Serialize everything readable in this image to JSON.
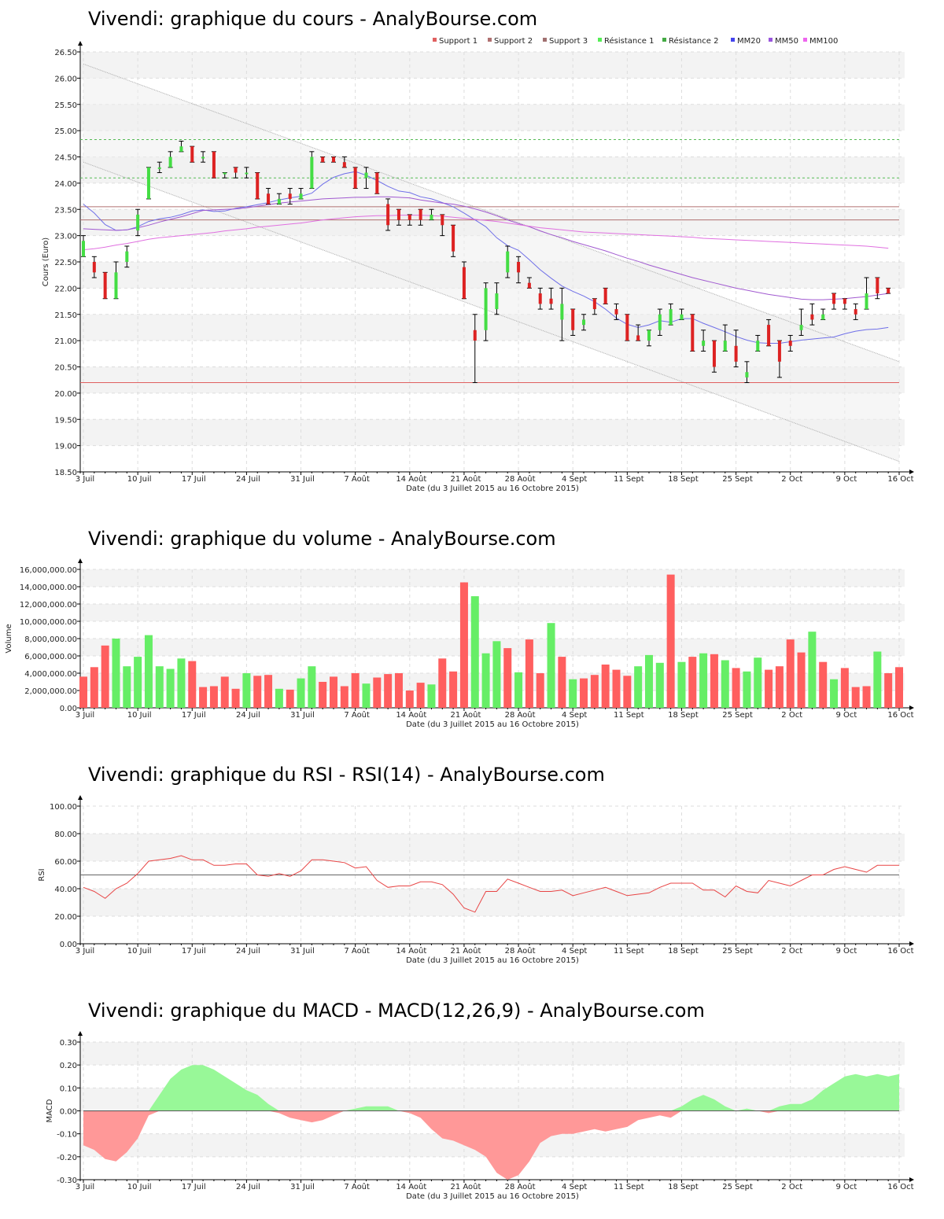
{
  "chart_data": [
    {
      "type": "candlestick",
      "title": "Vivendi: graphique du cours - AnalyBourse.com",
      "xlabel": "Date (du 3 Juillet 2015 au 16 Octobre 2015)",
      "ylabel": "Cours (Euro)",
      "ylim": [
        18.5,
        26.5
      ],
      "yticks": [
        "18.50",
        "19.00",
        "19.50",
        "20.00",
        "20.50",
        "21.00",
        "21.50",
        "22.00",
        "22.50",
        "23.00",
        "23.50",
        "24.00",
        "24.50",
        "25.00",
        "25.50",
        "26.00",
        "26.50"
      ],
      "xticks": [
        "3 Juil",
        "10 Juil",
        "17 Juil",
        "24 Juil",
        "31 Juil",
        "7 Août",
        "14 Août",
        "21 Août",
        "28 Août",
        "4 Sept",
        "11 Sept",
        "18 Sept",
        "25 Sept",
        "2 Oct",
        "9 Oct",
        "16 Oct"
      ],
      "legend": [
        "Support 1",
        "Support 2",
        "Support 3",
        "Résistance 1",
        "Résistance 2",
        "MM20",
        "MM50",
        "MM100"
      ],
      "levels": {
        "support_1": 20.2,
        "support_2": 23.3,
        "support_3": 23.55,
        "resistance_1": 24.1,
        "resistance_2": 24.83
      },
      "ohlc": [
        [
          22.6,
          23.0,
          22.6,
          22.9
        ],
        [
          22.5,
          22.6,
          22.2,
          22.3
        ],
        [
          22.3,
          22.3,
          21.8,
          21.8
        ],
        [
          21.8,
          22.5,
          21.8,
          22.3
        ],
        [
          22.5,
          22.8,
          22.4,
          22.7
        ],
        [
          23.1,
          23.5,
          23.0,
          23.4
        ],
        [
          23.7,
          24.3,
          23.7,
          24.3
        ],
        [
          24.3,
          24.4,
          24.2,
          24.3
        ],
        [
          24.3,
          24.6,
          24.3,
          24.5
        ],
        [
          24.6,
          24.8,
          24.6,
          24.7
        ],
        [
          24.7,
          24.7,
          24.4,
          24.4
        ],
        [
          24.5,
          24.6,
          24.4,
          24.5
        ],
        [
          24.6,
          24.6,
          24.1,
          24.1
        ],
        [
          24.2,
          24.2,
          24.1,
          24.2
        ],
        [
          24.3,
          24.3,
          24.1,
          24.2
        ],
        [
          24.2,
          24.3,
          24.1,
          24.2
        ],
        [
          24.2,
          24.2,
          23.7,
          23.7
        ],
        [
          23.8,
          23.9,
          23.6,
          23.6
        ],
        [
          23.6,
          23.8,
          23.6,
          23.7
        ],
        [
          23.8,
          23.9,
          23.6,
          23.7
        ],
        [
          23.7,
          23.9,
          23.7,
          23.8
        ],
        [
          23.9,
          24.6,
          23.9,
          24.5
        ],
        [
          24.5,
          24.5,
          24.4,
          24.4
        ],
        [
          24.5,
          24.5,
          24.4,
          24.4
        ],
        [
          24.4,
          24.5,
          24.3,
          24.3
        ],
        [
          24.3,
          24.3,
          23.9,
          23.9
        ],
        [
          24.1,
          24.3,
          23.9,
          24.2
        ],
        [
          24.2,
          24.2,
          23.8,
          23.8
        ],
        [
          23.6,
          23.7,
          23.1,
          23.2
        ],
        [
          23.5,
          23.5,
          23.2,
          23.3
        ],
        [
          23.4,
          23.4,
          23.2,
          23.3
        ],
        [
          23.5,
          23.5,
          23.2,
          23.3
        ],
        [
          23.3,
          23.5,
          23.3,
          23.4
        ],
        [
          23.4,
          23.4,
          23.0,
          23.2
        ],
        [
          23.2,
          23.2,
          22.6,
          22.7
        ],
        [
          22.4,
          22.5,
          21.8,
          21.8
        ],
        [
          21.2,
          21.5,
          20.2,
          21.0
        ],
        [
          21.2,
          22.1,
          21.0,
          22.0
        ],
        [
          21.6,
          22.1,
          21.5,
          21.9
        ],
        [
          22.3,
          22.8,
          22.2,
          22.7
        ],
        [
          22.5,
          22.6,
          22.1,
          22.3
        ],
        [
          22.1,
          22.2,
          22.0,
          22.0
        ],
        [
          21.9,
          22.0,
          21.6,
          21.7
        ],
        [
          21.8,
          22.0,
          21.6,
          21.7
        ],
        [
          21.4,
          22.0,
          21.0,
          21.7
        ],
        [
          21.6,
          21.6,
          21.1,
          21.2
        ],
        [
          21.3,
          21.5,
          21.2,
          21.4
        ],
        [
          21.8,
          21.8,
          21.5,
          21.6
        ],
        [
          22.0,
          22.0,
          21.7,
          21.7
        ],
        [
          21.6,
          21.7,
          21.4,
          21.5
        ],
        [
          21.5,
          21.5,
          21.0,
          21.0
        ],
        [
          21.1,
          21.3,
          21.0,
          21.0
        ],
        [
          21.0,
          21.2,
          20.9,
          21.2
        ],
        [
          21.2,
          21.6,
          21.1,
          21.5
        ],
        [
          21.3,
          21.7,
          21.3,
          21.6
        ],
        [
          21.4,
          21.6,
          21.4,
          21.5
        ],
        [
          21.5,
          21.5,
          20.8,
          20.8
        ],
        [
          20.9,
          21.2,
          20.8,
          21.0
        ],
        [
          21.0,
          21.0,
          20.4,
          20.5
        ],
        [
          20.8,
          21.3,
          20.8,
          21.0
        ],
        [
          20.9,
          21.2,
          20.5,
          20.6
        ],
        [
          20.3,
          20.6,
          20.2,
          20.4
        ],
        [
          20.8,
          21.1,
          20.8,
          21.0
        ],
        [
          21.3,
          21.4,
          20.9,
          20.9
        ],
        [
          21.0,
          21.0,
          20.3,
          20.6
        ],
        [
          21.0,
          21.1,
          20.8,
          20.9
        ],
        [
          21.2,
          21.6,
          21.1,
          21.3
        ],
        [
          21.5,
          21.7,
          21.3,
          21.4
        ],
        [
          21.4,
          21.6,
          21.4,
          21.5
        ],
        [
          21.9,
          21.9,
          21.6,
          21.7
        ],
        [
          21.8,
          21.8,
          21.6,
          21.7
        ],
        [
          21.6,
          21.7,
          21.4,
          21.5
        ],
        [
          21.6,
          22.2,
          21.6,
          21.9
        ],
        [
          22.2,
          22.2,
          21.8,
          21.9
        ],
        [
          22.0,
          22.0,
          21.9,
          21.9
        ]
      ],
      "mm20": [
        23.6,
        23.43,
        23.21,
        23.1,
        23.11,
        23.17,
        23.27,
        23.32,
        23.35,
        23.4,
        23.47,
        23.49,
        23.46,
        23.47,
        23.52,
        23.55,
        23.59,
        23.63,
        23.68,
        23.72,
        23.75,
        23.81,
        23.98,
        24.11,
        24.18,
        24.22,
        24.15,
        24.05,
        23.94,
        23.85,
        23.82,
        23.74,
        23.7,
        23.63,
        23.55,
        23.43,
        23.3,
        23.17,
        22.96,
        22.81,
        22.72,
        22.54,
        22.35,
        22.19,
        22.04,
        21.94,
        21.85,
        21.74,
        21.6,
        21.43,
        21.31,
        21.25,
        21.3,
        21.38,
        21.35,
        21.42,
        21.42,
        21.33,
        21.25,
        21.17,
        21.08,
        21.01,
        20.96,
        20.95,
        20.95,
        20.98,
        21.01,
        21.03,
        21.05,
        21.07,
        21.13,
        21.18,
        21.21,
        21.22,
        21.25
      ],
      "mm50": [
        23.13,
        23.12,
        23.11,
        23.1,
        23.11,
        23.15,
        23.2,
        23.26,
        23.31,
        23.36,
        23.42,
        23.48,
        23.49,
        23.5,
        23.51,
        23.53,
        23.56,
        23.59,
        23.62,
        23.64,
        23.66,
        23.68,
        23.7,
        23.71,
        23.72,
        23.73,
        23.73,
        23.74,
        23.74,
        23.73,
        23.72,
        23.68,
        23.65,
        23.62,
        23.6,
        23.56,
        23.51,
        23.45,
        23.38,
        23.3,
        23.23,
        23.17,
        23.09,
        23.02,
        22.96,
        22.89,
        22.83,
        22.77,
        22.71,
        22.64,
        22.57,
        22.51,
        22.44,
        22.38,
        22.32,
        22.26,
        22.2,
        22.15,
        22.1,
        22.05,
        22.0,
        21.96,
        21.92,
        21.88,
        21.85,
        21.82,
        21.79,
        21.78,
        21.78,
        21.79,
        21.8,
        21.82,
        21.84,
        21.87,
        21.9
      ],
      "mm100": [
        22.73,
        22.75,
        22.78,
        22.82,
        22.85,
        22.89,
        22.93,
        22.96,
        22.98,
        23.0,
        23.02,
        23.04,
        23.06,
        23.09,
        23.11,
        23.13,
        23.16,
        23.18,
        23.2,
        23.22,
        23.24,
        23.27,
        23.3,
        23.32,
        23.34,
        23.36,
        23.37,
        23.38,
        23.38,
        23.39,
        23.39,
        23.39,
        23.38,
        23.37,
        23.35,
        23.33,
        23.31,
        23.29,
        23.27,
        23.24,
        23.21,
        23.18,
        23.15,
        23.13,
        23.11,
        23.09,
        23.07,
        23.06,
        23.05,
        23.04,
        23.03,
        23.02,
        23.01,
        23.0,
        22.99,
        22.98,
        22.97,
        22.95,
        22.94,
        22.93,
        22.92,
        22.91,
        22.9,
        22.89,
        22.88,
        22.87,
        22.86,
        22.85,
        22.84,
        22.83,
        22.82,
        22.81,
        22.8,
        22.78,
        22.76
      ]
    },
    {
      "type": "bar",
      "title": "Vivendi: graphique du volume - AnalyBourse.com",
      "xlabel": "Date (du 3 Juillet 2015 au 16 Octobre 2015)",
      "ylabel": "Volume",
      "ylim": [
        0,
        16000000
      ],
      "yticks": [
        "0.00",
        "2,000,000.00",
        "4,000,000.00",
        "6,000,000.00",
        "8,000,000.00",
        "10,000,000.00",
        "12,000,000.00",
        "14,000,000.00",
        "16,000,000.00"
      ],
      "xticks": [
        "3 Juil",
        "10 Juil",
        "17 Juil",
        "24 Juil",
        "31 Juil",
        "7 Août",
        "14 Août",
        "21 Août",
        "28 Août",
        "4 Sept",
        "11 Sept",
        "18 Sept",
        "25 Sept",
        "2 Oct",
        "9 Oct",
        "16 Oct"
      ],
      "values": [
        3600000,
        4700000,
        7200000,
        8000000,
        4800000,
        5900000,
        8400000,
        4800000,
        4500000,
        5700000,
        5400000,
        2400000,
        2500000,
        3600000,
        2200000,
        4000000,
        3700000,
        3800000,
        2200000,
        2100000,
        3400000,
        4800000,
        3000000,
        3600000,
        2500000,
        4000000,
        2800000,
        3500000,
        3900000,
        4000000,
        2000000,
        2900000,
        2700000,
        5700000,
        4200000,
        14500000,
        12900000,
        6300000,
        7700000,
        6900000,
        4100000,
        7900000,
        4000000,
        9800000,
        5900000,
        3300000,
        3400000,
        3800000,
        5000000,
        4400000,
        3700000,
        4800000,
        6100000,
        5200000,
        15400000,
        5300000,
        5900000,
        6300000,
        6200000,
        5500000,
        4600000,
        4200000,
        5800000,
        4400000,
        4800000,
        7900000,
        6400000,
        8800000,
        5300000,
        3300000,
        4600000,
        2400000,
        2500000,
        6500000,
        4000000,
        4700000
      ],
      "up": [
        0,
        0,
        0,
        1,
        1,
        1,
        1,
        1,
        1,
        1,
        0,
        0,
        0,
        0,
        0,
        1,
        0,
        0,
        1,
        0,
        1,
        1,
        0,
        0,
        0,
        0,
        1,
        0,
        0,
        0,
        0,
        0,
        1,
        0,
        0,
        0,
        1,
        1,
        1,
        0,
        1,
        0,
        0,
        1,
        0,
        1,
        0,
        0,
        0,
        0,
        0,
        1,
        1,
        1,
        0,
        1,
        0,
        1,
        0,
        1,
        0,
        1,
        1,
        0,
        0,
        0,
        0,
        1,
        0,
        1,
        0,
        0,
        0,
        1,
        0,
        0
      ]
    },
    {
      "type": "line",
      "title": "Vivendi: graphique du RSI - RSI(14) - AnalyBourse.com",
      "xlabel": "Date (du 3 Juillet 2015 au 16 Octobre 2015)",
      "ylabel": "RSI",
      "ylim": [
        0,
        100
      ],
      "yticks": [
        "0.00",
        "20.00",
        "40.00",
        "60.00",
        "80.00",
        "100.00"
      ],
      "xticks": [
        "3 Juil",
        "10 Juil",
        "17 Juil",
        "24 Juil",
        "31 Juil",
        "7 Août",
        "14 Août",
        "21 Août",
        "28 Août",
        "4 Sept",
        "11 Sept",
        "18 Sept",
        "25 Sept",
        "2 Oct",
        "9 Oct",
        "16 Oct"
      ],
      "reference": 50,
      "values": [
        41,
        38,
        33,
        40,
        44,
        51,
        60,
        61,
        62,
        64,
        61,
        61,
        57,
        57,
        58,
        58,
        50,
        49,
        51,
        49,
        53,
        61,
        61,
        60,
        59,
        55,
        56,
        46,
        41,
        42,
        42,
        45,
        45,
        43,
        36,
        26,
        23,
        38,
        38,
        47,
        44,
        41,
        38,
        38,
        39,
        35,
        37,
        39,
        41,
        38,
        35,
        36,
        37,
        41,
        44,
        44,
        44,
        39,
        39,
        34,
        42,
        38,
        37,
        46,
        44,
        42,
        46,
        50,
        50,
        54,
        56,
        54,
        52,
        57,
        57,
        57
      ],
      "series": [
        {
          "name": "",
          "color": "#e84545"
        }
      ]
    },
    {
      "type": "area",
      "title": "Vivendi: graphique du MACD - MACD(12,26,9) - AnalyBourse.com",
      "xlabel": "Date (du 3 Juillet 2015 au 16 Octobre 2015)",
      "ylabel": "MACD",
      "ylim": [
        -0.3,
        0.3
      ],
      "yticks": [
        "-0.30",
        "-0.20",
        "-0.10",
        "0.00",
        "0.10",
        "0.20",
        "0.30"
      ],
      "xticks": [
        "3 Juil",
        "10 Juil",
        "17 Juil",
        "24 Juil",
        "31 Juil",
        "7 Août",
        "14 Août",
        "21 Août",
        "28 Août",
        "4 Sept",
        "11 Sept",
        "18 Sept",
        "25 Sept",
        "2 Oct",
        "9 Oct",
        "16 Oct"
      ],
      "values": [
        -0.15,
        -0.17,
        -0.21,
        -0.22,
        -0.18,
        -0.12,
        -0.02,
        0.07,
        0.14,
        0.18,
        0.2,
        0.2,
        0.18,
        0.15,
        0.12,
        0.09,
        0.07,
        0.03,
        -0.01,
        -0.03,
        -0.04,
        -0.05,
        -0.04,
        -0.02,
        0.0,
        0.01,
        0.02,
        0.02,
        0.02,
        0.0,
        -0.01,
        -0.03,
        -0.08,
        -0.12,
        -0.13,
        -0.15,
        -0.17,
        -0.2,
        -0.27,
        -0.3,
        -0.28,
        -0.22,
        -0.14,
        -0.11,
        -0.1,
        -0.1,
        -0.09,
        -0.08,
        -0.09,
        -0.08,
        -0.07,
        -0.04,
        -0.03,
        -0.02,
        -0.03,
        0.02,
        0.05,
        0.07,
        0.05,
        0.02,
        0.0,
        0.01,
        0.0,
        -0.01,
        0.02,
        0.03,
        0.03,
        0.05,
        0.09,
        0.12,
        0.15,
        0.16,
        0.15,
        0.16,
        0.15,
        0.16
      ],
      "pos_color": "#98f898",
      "neg_color": "#ff9898"
    }
  ]
}
